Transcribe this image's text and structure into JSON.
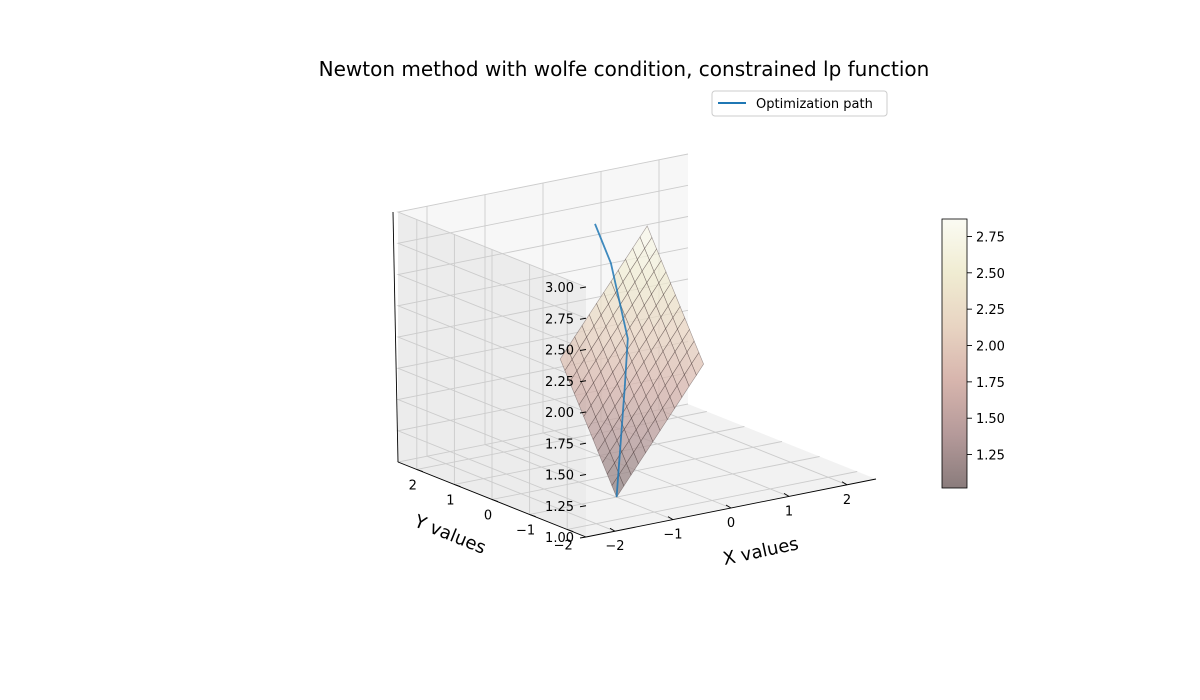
{
  "chart_data": {
    "type": "surface3d",
    "title": "Newton method with wolfe condition, constrained lp function",
    "xlabel": "X values",
    "ylabel": "Y values",
    "zlabel": "",
    "xlim": [
      -2.5,
      2.5
    ],
    "ylim": [
      -2.5,
      2.5
    ],
    "zlim": [
      1.0,
      3.0
    ],
    "xticks": [
      -2,
      -1,
      0,
      1,
      2
    ],
    "yticks": [
      -2,
      -1,
      0,
      1,
      2
    ],
    "zticks": [
      1.0,
      1.25,
      1.5,
      1.75,
      2.0,
      2.25,
      2.5,
      2.75,
      3.0
    ],
    "ztick_labels": [
      "1.00",
      "1.25",
      "1.50",
      "1.75",
      "2.00",
      "2.25",
      "2.50",
      "2.75",
      "3.00"
    ],
    "grid": true,
    "legend": {
      "placement": "upper-center",
      "entries": [
        "Optimization path"
      ]
    },
    "series": [
      {
        "name": "Optimization path",
        "color": "#1f77b4",
        "points": [
          {
            "x": -1.0,
            "y": -1.0,
            "z": 1.0
          },
          {
            "x": -0.8,
            "y": -0.8,
            "z": 1.4
          },
          {
            "x": -0.6,
            "y": -0.6,
            "z": 1.8
          },
          {
            "x": -0.45,
            "y": -0.45,
            "z": 2.15
          },
          {
            "x": -0.45,
            "y": 0.0,
            "z": 2.7
          },
          {
            "x": -0.4,
            "y": 0.5,
            "z": 2.95
          }
        ]
      }
    ],
    "surface": {
      "x_range": [
        -1.0,
        0.5
      ],
      "y_range": [
        -1.0,
        0.5
      ],
      "z_min": 1.0,
      "z_max": 2.85,
      "grid_steps": 12
    },
    "colorbar": {
      "min": 1.02,
      "max": 2.87,
      "ticks": [
        1.25,
        1.5,
        1.75,
        2.0,
        2.25,
        2.5,
        2.75
      ],
      "tick_labels": [
        "1.25",
        "1.50",
        "1.75",
        "2.00",
        "2.25",
        "2.50",
        "2.75"
      ],
      "colormap": "pink",
      "colors": [
        "#8a7c7c",
        "#b59a9a",
        "#d7b5ad",
        "#e8d4c2",
        "#f0ecd2",
        "#fbfbf3"
      ]
    }
  }
}
